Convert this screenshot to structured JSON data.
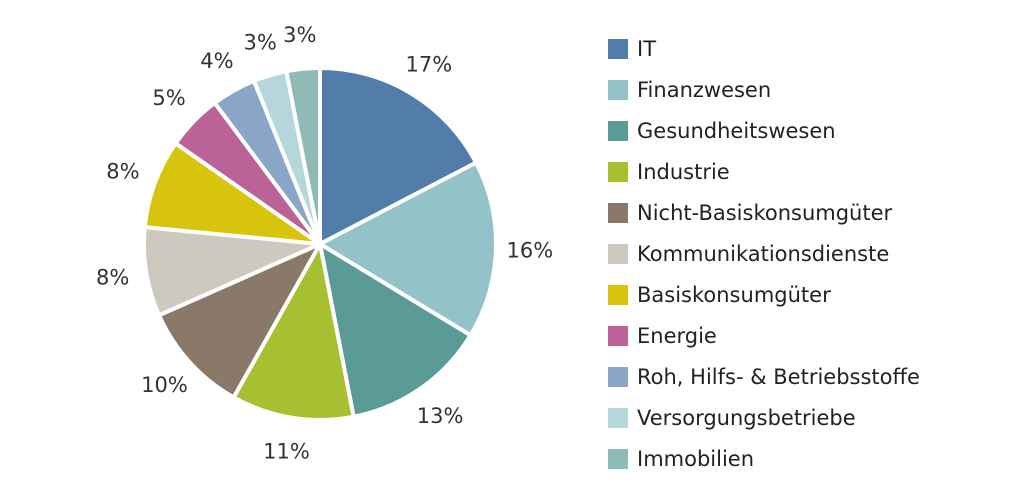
{
  "chart_data": {
    "type": "pie",
    "title": "",
    "categories": [
      "IT",
      "Finanzwesen",
      "Gesundheitswesen",
      "Industrie",
      "Nicht-Basiskonsumgüter",
      "Kommunikationsdienste",
      "Basiskonsumgüter",
      "Energie",
      "Roh, Hilfs- & Betriebsstoffe",
      "Versorgungsbetriebe",
      "Immobilien"
    ],
    "values": [
      17,
      16,
      13,
      11,
      10,
      8,
      8,
      5,
      4,
      3,
      3
    ],
    "value_labels": [
      "17%",
      "16%",
      "13%",
      "11%",
      "10%",
      "8%",
      "8%",
      "5%",
      "4%",
      "3%",
      "3%"
    ],
    "colors": [
      "#527ca9",
      "#93c3c8",
      "#5a9a97",
      "#a7c032",
      "#8a7868",
      "#cdc9be",
      "#d9c40d",
      "#bb6396",
      "#8aa6c6",
      "#b5d6da",
      "#8fbab6"
    ],
    "legend_position": "right",
    "start_angle_deg": 0,
    "direction": "clockwise"
  }
}
